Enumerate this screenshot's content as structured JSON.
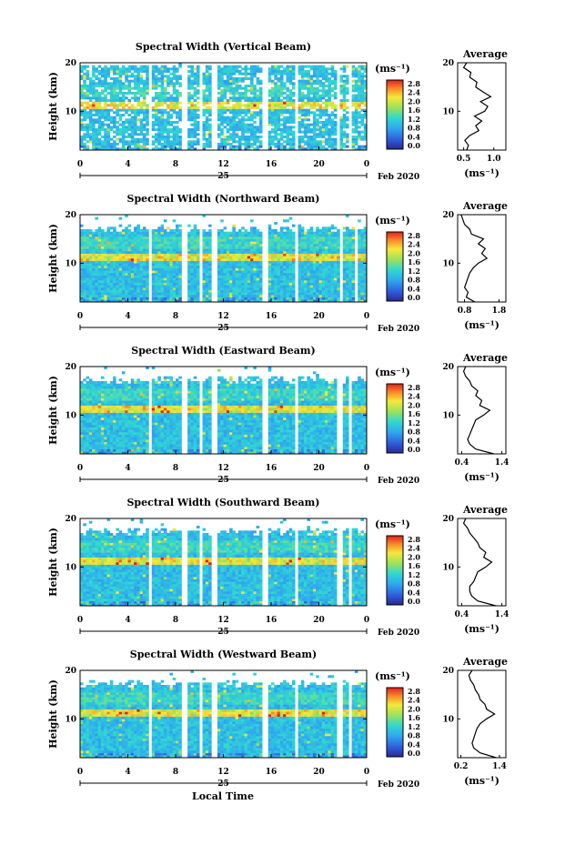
{
  "figure": {
    "xlabel": "Local Time",
    "date_label": "Feb 2020",
    "day_label": "25",
    "ylabel": "Height (km)",
    "colorbar_unit": "(ms⁻¹)",
    "average_title": "Average",
    "average_unit": "(ms⁻¹)"
  },
  "chart_data": [
    {
      "type": "heatmap",
      "title": "Spectral Width (Vertical Beam)",
      "xticks": [
        "0",
        "4",
        "8",
        "12",
        "16",
        "20",
        "0"
      ],
      "yticks": [
        "10",
        "20"
      ],
      "xlim": [
        0,
        24
      ],
      "ylim": [
        2,
        20
      ],
      "colorbar": {
        "ticks": [
          "0.0",
          "0.4",
          "0.8",
          "1.2",
          "1.6",
          "2.0",
          "2.4",
          "2.8"
        ],
        "range": [
          0,
          2.8
        ]
      },
      "gaps": [
        [
          5.8,
          6.0
        ],
        [
          8.5,
          9.0
        ],
        [
          10.0,
          10.3
        ],
        [
          11.0,
          11.4
        ],
        [
          15.2,
          15.7
        ],
        [
          18.0,
          18.3
        ],
        [
          21.5,
          21.8
        ],
        [
          22.5,
          22.8
        ]
      ],
      "profile": {
        "xticks": [
          "0.5",
          "1.0"
        ],
        "xlim": [
          0.4,
          1.2
        ],
        "height": [
          2,
          3,
          4,
          5,
          6,
          7,
          8,
          9,
          10,
          11,
          12,
          13,
          14,
          15,
          16,
          17,
          18,
          19,
          20
        ],
        "value": [
          0.55,
          0.58,
          0.52,
          0.6,
          0.75,
          0.7,
          0.8,
          0.68,
          0.85,
          0.9,
          0.78,
          0.95,
          0.82,
          0.7,
          0.72,
          0.6,
          0.62,
          0.5,
          0.55
        ]
      }
    },
    {
      "type": "heatmap",
      "title": "Spectral Width (Northward Beam)",
      "xticks": [
        "0",
        "4",
        "8",
        "12",
        "16",
        "20",
        "0"
      ],
      "yticks": [
        "10",
        "20"
      ],
      "xlim": [
        0,
        24
      ],
      "ylim": [
        2,
        20
      ],
      "colorbar": {
        "ticks": [
          "0.0",
          "0.4",
          "0.8",
          "1.2",
          "1.6",
          "2.0",
          "2.4",
          "2.8"
        ],
        "range": [
          0,
          2.8
        ]
      },
      "gaps": [
        [
          5.8,
          6.0
        ],
        [
          8.5,
          8.9
        ],
        [
          10.0,
          10.3
        ],
        [
          11.0,
          11.4
        ],
        [
          15.2,
          15.7
        ],
        [
          18.0,
          18.3
        ],
        [
          21.8,
          22.0
        ],
        [
          23.0,
          23.3
        ]
      ],
      "profile": {
        "xticks": [
          "0.8",
          "1.8"
        ],
        "xlim": [
          0.6,
          2.0
        ],
        "height": [
          2,
          3,
          4,
          5,
          6,
          7,
          8,
          9,
          10,
          11,
          12,
          13,
          14,
          15,
          16,
          17,
          18,
          19,
          20
        ],
        "value": [
          1.1,
          0.85,
          0.9,
          0.8,
          0.85,
          0.9,
          0.95,
          1.05,
          1.2,
          1.45,
          1.3,
          1.4,
          1.2,
          1.35,
          1.0,
          0.95,
          0.8,
          0.75,
          0.7
        ]
      }
    },
    {
      "type": "heatmap",
      "title": "Spectral Width (Eastward Beam)",
      "xticks": [
        "0",
        "4",
        "8",
        "12",
        "16",
        "20",
        "0"
      ],
      "yticks": [
        "10",
        "20"
      ],
      "xlim": [
        0,
        24
      ],
      "ylim": [
        2,
        20
      ],
      "colorbar": {
        "ticks": [
          "0.0",
          "0.4",
          "0.8",
          "1.2",
          "1.6",
          "2.0",
          "2.4",
          "2.8"
        ],
        "range": [
          0,
          2.8
        ]
      },
      "gaps": [
        [
          5.8,
          6.0
        ],
        [
          8.5,
          8.9
        ],
        [
          10.0,
          10.3
        ],
        [
          11.0,
          11.4
        ],
        [
          15.2,
          15.7
        ],
        [
          18.0,
          18.3
        ],
        [
          21.6,
          21.9
        ],
        [
          22.6,
          22.8
        ]
      ],
      "profile": {
        "xticks": [
          "0.4",
          "1.4"
        ],
        "xlim": [
          0.3,
          1.5
        ],
        "height": [
          2,
          3,
          4,
          5,
          6,
          7,
          8,
          9,
          10,
          11,
          12,
          13,
          14,
          15,
          16,
          17,
          18,
          19,
          20
        ],
        "value": [
          1.2,
          0.75,
          0.6,
          0.55,
          0.6,
          0.65,
          0.7,
          0.75,
          0.95,
          1.1,
          0.85,
          0.9,
          0.75,
          0.8,
          0.65,
          0.6,
          0.5,
          0.45,
          0.5
        ]
      }
    },
    {
      "type": "heatmap",
      "title": "Spectral Width (Southward Beam)",
      "xticks": [
        "0",
        "4",
        "8",
        "12",
        "16",
        "20",
        "0"
      ],
      "yticks": [
        "10",
        "20"
      ],
      "xlim": [
        0,
        24
      ],
      "ylim": [
        2,
        20
      ],
      "colorbar": {
        "ticks": [
          "0.0",
          "0.4",
          "0.8",
          "1.2",
          "1.6",
          "2.0",
          "2.4",
          "2.8"
        ],
        "range": [
          0,
          2.8
        ]
      },
      "gaps": [
        [
          5.8,
          6.0
        ],
        [
          8.5,
          8.9
        ],
        [
          10.0,
          10.3
        ],
        [
          11.0,
          11.4
        ],
        [
          15.2,
          15.7
        ],
        [
          18.0,
          18.3
        ],
        [
          21.6,
          21.9
        ],
        [
          22.6,
          22.8
        ]
      ],
      "profile": {
        "xticks": [
          "0.4",
          "1.4"
        ],
        "xlim": [
          0.3,
          1.5
        ],
        "height": [
          2,
          3,
          4,
          5,
          6,
          7,
          8,
          9,
          10,
          11,
          12,
          13,
          14,
          15,
          16,
          17,
          18,
          19,
          20
        ],
        "value": [
          1.25,
          0.8,
          0.65,
          0.6,
          0.6,
          0.7,
          0.75,
          0.8,
          1.0,
          1.15,
          0.95,
          1.0,
          0.85,
          0.8,
          0.7,
          0.6,
          0.55,
          0.45,
          0.5
        ]
      }
    },
    {
      "type": "heatmap",
      "title": "Spectral Width (Westward Beam)",
      "xticks": [
        "0",
        "4",
        "8",
        "12",
        "16",
        "20",
        "0"
      ],
      "yticks": [
        "10",
        "20"
      ],
      "xlim": [
        0,
        24
      ],
      "ylim": [
        2,
        20
      ],
      "colorbar": {
        "ticks": [
          "0.0",
          "0.4",
          "0.8",
          "1.2",
          "1.6",
          "2.0",
          "2.4",
          "2.8"
        ],
        "range": [
          0,
          2.8
        ]
      },
      "gaps": [
        [
          5.8,
          6.0
        ],
        [
          8.5,
          8.9
        ],
        [
          10.0,
          10.3
        ],
        [
          11.0,
          11.4
        ],
        [
          15.2,
          15.7
        ],
        [
          18.0,
          18.3
        ],
        [
          21.6,
          21.9
        ],
        [
          22.6,
          22.8
        ]
      ],
      "profile": {
        "xticks": [
          "0.2",
          "1.4"
        ],
        "xlim": [
          0.1,
          1.6
        ],
        "height": [
          2,
          3,
          4,
          5,
          6,
          7,
          8,
          9,
          10,
          11,
          12,
          13,
          14,
          15,
          16,
          17,
          18,
          19,
          20
        ],
        "value": [
          1.3,
          0.8,
          0.6,
          0.55,
          0.6,
          0.65,
          0.7,
          0.8,
          1.0,
          1.25,
          1.0,
          0.95,
          0.8,
          0.75,
          0.65,
          0.6,
          0.5,
          0.45,
          0.55
        ]
      }
    }
  ]
}
